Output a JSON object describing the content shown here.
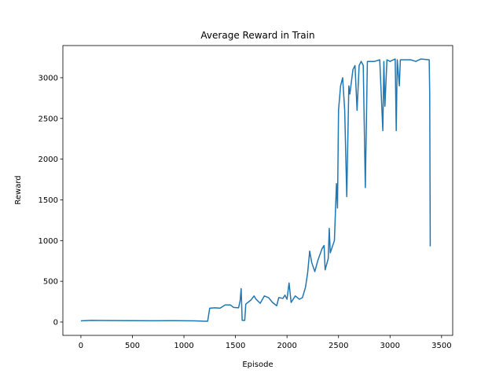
{
  "chart_data": {
    "type": "line",
    "title": "Average Reward in Train",
    "x_label": "Episode",
    "y_label": "Reward",
    "x": [
      0,
      100,
      300,
      500,
      700,
      900,
      1100,
      1150,
      1200,
      1230,
      1250,
      1300,
      1350,
      1400,
      1450,
      1480,
      1530,
      1545,
      1555,
      1565,
      1590,
      1600,
      1650,
      1680,
      1700,
      1740,
      1780,
      1820,
      1860,
      1900,
      1920,
      1960,
      1980,
      2000,
      2020,
      2040,
      2080,
      2120,
      2150,
      2180,
      2200,
      2220,
      2240,
      2270,
      2300,
      2340,
      2360,
      2370,
      2400,
      2410,
      2420,
      2460,
      2480,
      2490,
      2500,
      2520,
      2540,
      2560,
      2580,
      2600,
      2610,
      2640,
      2660,
      2680,
      2700,
      2720,
      2740,
      2760,
      2780,
      2850,
      2900,
      2930,
      2940,
      2950,
      2970,
      3000,
      3050,
      3060,
      3070,
      3090,
      3100,
      3200,
      3250,
      3300,
      3380,
      3385,
      3390
    ],
    "values": [
      15,
      20,
      18,
      17,
      16,
      17,
      15,
      12,
      10,
      10,
      170,
      175,
      170,
      210,
      210,
      180,
      175,
      260,
      410,
      20,
      20,
      220,
      270,
      320,
      280,
      230,
      320,
      300,
      240,
      200,
      300,
      290,
      330,
      280,
      480,
      240,
      320,
      280,
      300,
      430,
      600,
      870,
      730,
      620,
      760,
      900,
      940,
      640,
      780,
      1150,
      850,
      1000,
      1700,
      1400,
      2600,
      2900,
      3000,
      2600,
      1540,
      2900,
      2800,
      3100,
      3150,
      2600,
      3150,
      3200,
      3150,
      1650,
      3200,
      3200,
      3220,
      2350,
      3200,
      2650,
      3220,
      3200,
      3230,
      2350,
      3220,
      2900,
      3220,
      3220,
      3200,
      3230,
      3220,
      2800,
      930
    ],
    "color": "#1f77b4",
    "xlim": [
      -175,
      3608
    ],
    "ylim": [
      -164,
      3395
    ],
    "xticks": [
      0,
      500,
      1000,
      1500,
      2000,
      2500,
      3000,
      3500
    ],
    "yticks": [
      0,
      500,
      1000,
      1500,
      2000,
      2500,
      3000
    ]
  }
}
